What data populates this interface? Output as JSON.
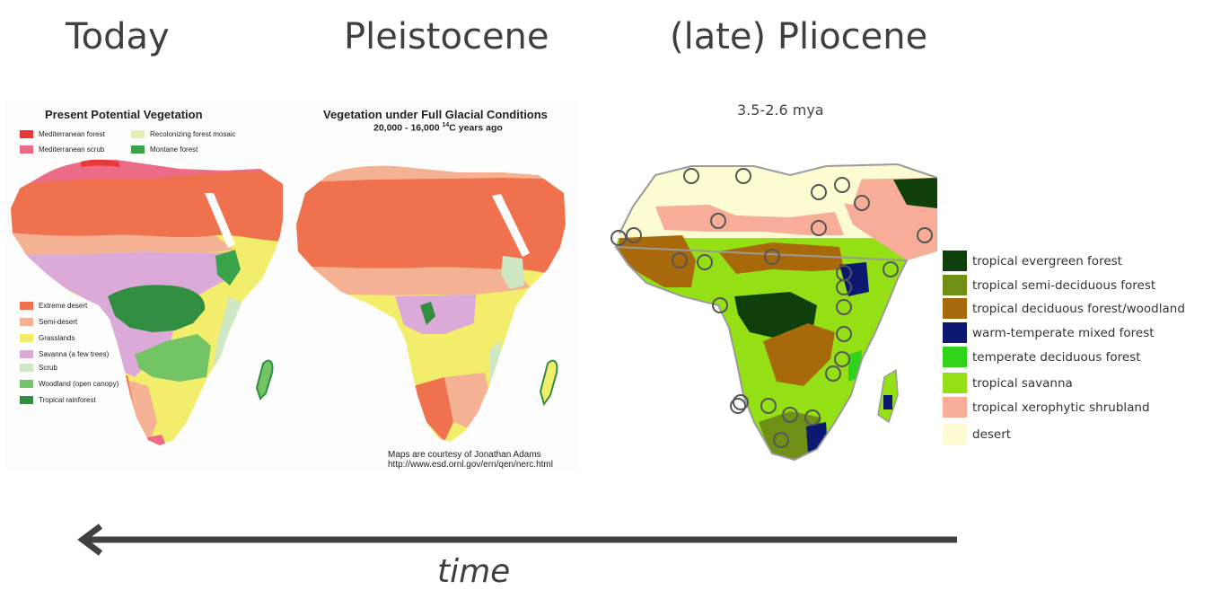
{
  "headings": {
    "today": "Today",
    "pleistocene": "Pleistocene",
    "pliocene": "(late) Pliocene"
  },
  "today_map": {
    "title": "Present Potential Vegetation",
    "legend_top": [
      {
        "label": "Mediterranean forest",
        "color": "#e8393a"
      },
      {
        "label": "Mediterranean scrub",
        "color": "#ec6b86"
      },
      {
        "label": "Recolonizing forest mosaic",
        "color": "#e4efb6"
      },
      {
        "label": "Montane forest",
        "color": "#3aa34a"
      }
    ],
    "legend_bottom": [
      {
        "label": "Extreme desert",
        "color": "#f0714e"
      },
      {
        "label": "Semi-desert",
        "color": "#f5b193"
      },
      {
        "label": "Grasslands",
        "color": "#f2ee6c"
      },
      {
        "label": "Savanna (a few trees)",
        "color": "#dcaad8"
      },
      {
        "label": "Scrub",
        "color": "#cde8c3"
      },
      {
        "label": "Woodland (open canopy)",
        "color": "#72c465"
      },
      {
        "label": "Tropical rainforest",
        "color": "#2f8e3f"
      }
    ]
  },
  "pleistocene_map": {
    "title": "Vegetation under Full Glacial Conditions",
    "subtitle_pre": "20,000 - 16,000 ",
    "subtitle_sup": "14",
    "subtitle_post": "C years ago",
    "credit_line1": "Maps are courtesy of Jonathan Adams",
    "credit_line2": "http://www.esd.ornl.gov/ern/qen/nerc.html"
  },
  "pliocene_map": {
    "age": "3.5-2.6 mya",
    "legend": [
      {
        "label": "tropical evergreen forest",
        "color": "#0f3f0a"
      },
      {
        "label": "tropical semi-deciduous forest",
        "color": "#6f8f15"
      },
      {
        "label": "tropical deciduous forest/woodland",
        "color": "#a8690b"
      },
      {
        "label": "warm-temperate mixed forest",
        "color": "#0d1872"
      },
      {
        "label": "temperate deciduous forest",
        "color": "#2fd41a"
      },
      {
        "label": "tropical savanna",
        "color": "#95e014"
      },
      {
        "label": "tropical xerophytic shrubland",
        "color": "#f7ad98"
      },
      {
        "label": "desert",
        "color": "#fdfbd2"
      }
    ]
  },
  "timeline": {
    "label": "time",
    "direction": "right-to-left",
    "arrow_color": "#404040"
  }
}
